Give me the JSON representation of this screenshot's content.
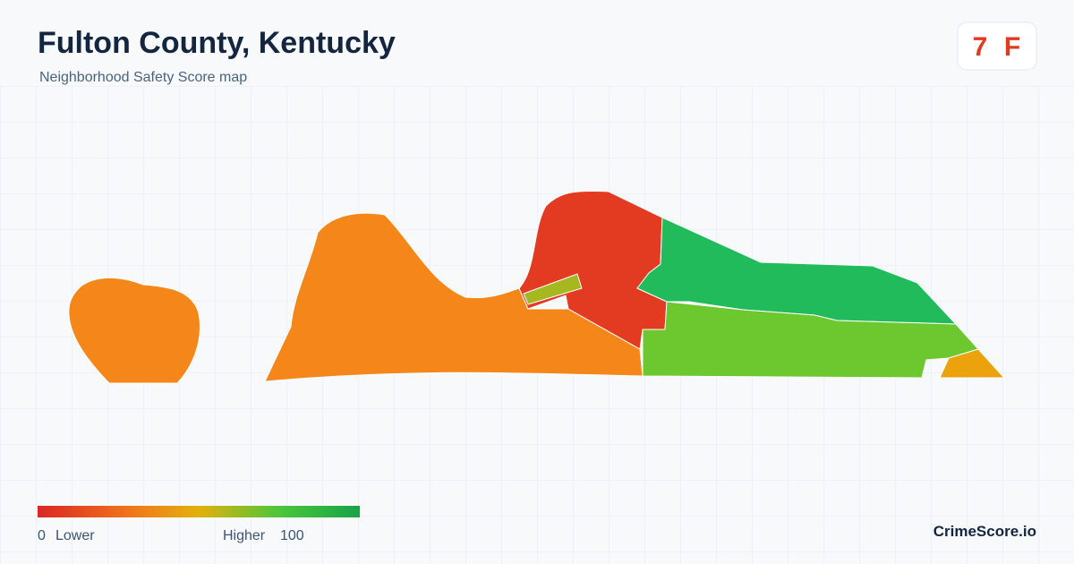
{
  "header": {
    "title": "Fulton County, Kentucky",
    "subtitle": "Neighborhood Safety Score map"
  },
  "score": {
    "value": "7",
    "grade": "F"
  },
  "legend": {
    "min": "0",
    "min_label": "Lower",
    "max_label": "Higher",
    "max": "100"
  },
  "footer": {
    "brand": "CrimeScore.io"
  }
}
